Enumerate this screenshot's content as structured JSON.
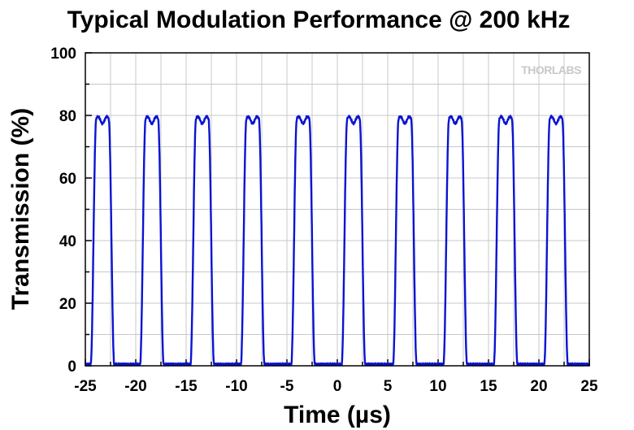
{
  "chart_data": {
    "type": "line",
    "title": "Typical Modulation Performance @ 200 kHz",
    "xlabel": "Time (µs)",
    "ylabel": "Transmission (%)",
    "xlim": [
      -25,
      25
    ],
    "ylim": [
      0,
      100
    ],
    "x_ticks": [
      "-25",
      "-20",
      "-15",
      "-10",
      "-5",
      "0",
      "5",
      "10",
      "15",
      "20",
      "25"
    ],
    "y_ticks": [
      "0",
      "20",
      "40",
      "60",
      "80",
      "100"
    ],
    "grid": true,
    "series": [
      {
        "color": "#0a14d2",
        "period": 5,
        "min": 0.5,
        "max": 80,
        "pulse_centers": [
          -23.3,
          -18.4,
          -13.4,
          -8.4,
          -3.4,
          1.6,
          6.7,
          11.7,
          16.7,
          21.7
        ]
      }
    ]
  },
  "logo": {
    "text": "THORLABS",
    "color": "#c8c8c8"
  }
}
